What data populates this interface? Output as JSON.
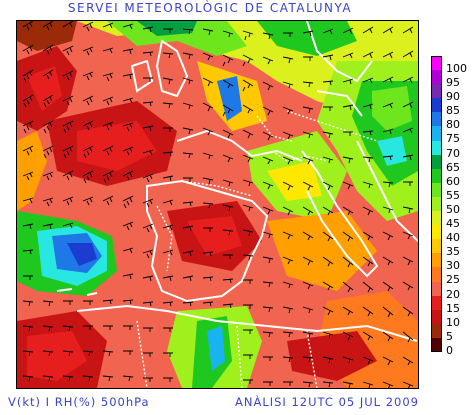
{
  "header": {
    "title": "SERVEI METEOROLÒGIC DE CATALUNYA"
  },
  "footer": {
    "variable_label": "V(kt) I RH(%) 500hPa",
    "analysis_label": "ANÀLISI 12UTC 05 JUL 2009"
  },
  "legend": {
    "unit": "RH (%)",
    "levels": [
      {
        "value": "100",
        "color": "#ff00ff"
      },
      {
        "value": "95",
        "color": "#b000d8"
      },
      {
        "value": "90",
        "color": "#7a2ab0"
      },
      {
        "value": "85",
        "color": "#1a3cd0"
      },
      {
        "value": "80",
        "color": "#1e78e6"
      },
      {
        "value": "75",
        "color": "#18b4f0"
      },
      {
        "value": "70",
        "color": "#28e6e0"
      },
      {
        "value": "65",
        "color": "#00a040"
      },
      {
        "value": "60",
        "color": "#1ec81e"
      },
      {
        "value": "55",
        "color": "#6ee61e"
      },
      {
        "value": "50",
        "color": "#a0f01e"
      },
      {
        "value": "45",
        "color": "#dcf01e"
      },
      {
        "value": "40",
        "color": "#ffe800"
      },
      {
        "value": "35",
        "color": "#ffc800"
      },
      {
        "value": "30",
        "color": "#ffa000"
      },
      {
        "value": "25",
        "color": "#ff7a1e"
      },
      {
        "value": "20",
        "color": "#f06450"
      },
      {
        "value": "15",
        "color": "#e61e1e"
      },
      {
        "value": "10",
        "color": "#c81414"
      },
      {
        "value": "5",
        "color": "#9a2a08"
      },
      {
        "value": "0",
        "color": "#500000"
      }
    ]
  },
  "map": {
    "variable": "relative humidity with wind barbs",
    "level": "500hPa"
  }
}
